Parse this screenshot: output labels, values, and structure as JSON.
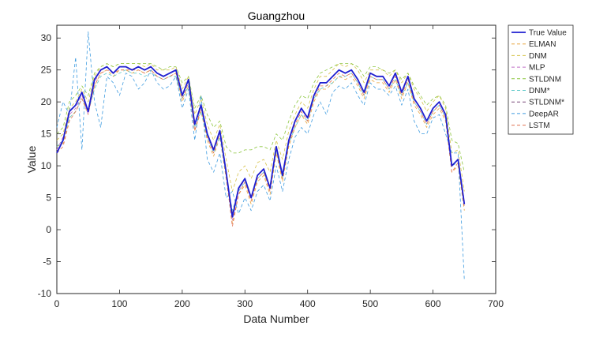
{
  "chart_data": {
    "type": "line",
    "title": "Guangzhou",
    "xlabel": "Data Number",
    "ylabel": "Value",
    "xlim": [
      0,
      700
    ],
    "ylim": [
      -10,
      32
    ],
    "xticks": [
      0,
      100,
      200,
      300,
      400,
      500,
      600,
      700
    ],
    "yticks": [
      -10,
      -5,
      0,
      5,
      10,
      15,
      20,
      25,
      30
    ],
    "grid": false,
    "legend_position": "outside-right-top",
    "x": [
      0,
      10,
      20,
      30,
      40,
      50,
      60,
      70,
      80,
      90,
      100,
      110,
      120,
      130,
      140,
      150,
      160,
      170,
      180,
      190,
      200,
      210,
      220,
      230,
      240,
      250,
      260,
      270,
      280,
      290,
      300,
      310,
      320,
      330,
      340,
      350,
      360,
      370,
      380,
      390,
      400,
      410,
      420,
      430,
      440,
      450,
      460,
      470,
      480,
      490,
      500,
      510,
      520,
      530,
      540,
      550,
      560,
      570,
      580,
      590,
      600,
      610,
      620,
      630,
      640,
      650
    ],
    "series": [
      {
        "name": "True Value",
        "color": "#1f1fd0",
        "width": 1.8,
        "dash": "",
        "values": [
          12,
          14,
          18.5,
          19.5,
          21.5,
          18.5,
          23.5,
          25,
          25.5,
          24.5,
          25.5,
          25.5,
          25,
          25.5,
          25,
          25.5,
          24.5,
          24,
          24.5,
          25,
          21,
          23.5,
          16.5,
          19.5,
          15,
          12.5,
          15.5,
          9,
          2,
          6.5,
          8,
          5,
          8.5,
          9.5,
          6.5,
          13,
          8.5,
          14,
          17,
          19,
          17.5,
          21,
          23,
          23,
          24,
          25,
          24.5,
          25,
          23.5,
          21.5,
          24.5,
          24,
          24,
          22.5,
          24.5,
          21.5,
          24,
          20.5,
          19,
          17,
          19,
          20,
          18,
          10,
          11,
          4
        ]
      },
      {
        "name": "ELMAN",
        "color": "#e8a33a",
        "width": 0.8,
        "dash": "4 3",
        "values": [
          13,
          13.5,
          17.5,
          18.5,
          20.5,
          18,
          22.5,
          24.5,
          25,
          24,
          25,
          25,
          24.5,
          25,
          24.5,
          25,
          24,
          23.5,
          24,
          24.5,
          20,
          22.5,
          15.5,
          18.5,
          14,
          11.5,
          14.5,
          8,
          1,
          5.5,
          7,
          4,
          7.5,
          8.5,
          5.5,
          12,
          7.5,
          13,
          16,
          18,
          16.5,
          20,
          22,
          22,
          23,
          24,
          23.5,
          24,
          22.5,
          20.5,
          23.5,
          23,
          23,
          21.5,
          23.5,
          20.5,
          23,
          19.5,
          18,
          16,
          18,
          19,
          17,
          9,
          10,
          3
        ]
      },
      {
        "name": "DNM",
        "color": "#d6c24a",
        "width": 0.8,
        "dash": "4 3",
        "values": [
          14,
          15,
          19,
          20,
          22,
          20,
          24,
          25.5,
          26,
          25.5,
          26,
          26,
          26,
          26,
          25.5,
          26,
          25,
          25,
          25,
          25.5,
          22,
          24,
          18,
          20.5,
          16.5,
          14,
          16.5,
          11,
          6,
          9,
          10,
          8,
          10.5,
          11,
          9,
          14,
          11,
          15.5,
          18,
          20,
          19,
          22,
          24,
          24,
          25,
          26,
          25.5,
          26,
          25,
          23,
          25,
          25,
          25,
          24,
          25,
          23,
          24.5,
          22,
          20.5,
          18.5,
          20,
          21,
          19,
          12,
          12.5,
          6
        ]
      },
      {
        "name": "MLP",
        "color": "#c070c8",
        "width": 0.8,
        "dash": "4 3",
        "values": [
          12.5,
          14.5,
          18,
          19,
          21,
          18,
          23,
          25,
          25.5,
          24.5,
          25.5,
          25.5,
          25,
          25.5,
          25,
          25.5,
          24.5,
          24,
          24.5,
          25,
          21,
          23.5,
          16.5,
          19.5,
          15,
          12.5,
          15.5,
          9,
          1.5,
          6,
          8,
          5,
          8.5,
          9.5,
          6.5,
          13,
          8.5,
          14,
          17,
          19,
          17.5,
          21,
          23,
          23,
          24,
          25,
          24.5,
          25,
          23.5,
          21.5,
          24.5,
          24,
          24,
          22.5,
          24.5,
          21.5,
          24,
          20.5,
          19,
          17,
          19,
          20,
          18,
          10,
          11,
          4.5
        ]
      },
      {
        "name": "STLDNM",
        "color": "#8cc63e",
        "width": 0.8,
        "dash": "4 3",
        "values": [
          15,
          16,
          20,
          21,
          22.5,
          21,
          24.5,
          25.5,
          26,
          25.5,
          26,
          26,
          26,
          26,
          26,
          26,
          25.5,
          25,
          25.5,
          25.5,
          23,
          24,
          19,
          21,
          18,
          16,
          17,
          13,
          12,
          12,
          12.5,
          12.5,
          13,
          13,
          12.5,
          15,
          14,
          17,
          19.5,
          21,
          20.5,
          23,
          24.5,
          25,
          25.5,
          26,
          26,
          26,
          25.5,
          24,
          25.5,
          25.5,
          25,
          24.5,
          25,
          23.5,
          24.5,
          22.5,
          21,
          19.5,
          20.5,
          21,
          19.5,
          14,
          13.5,
          9
        ]
      },
      {
        "name": "DNM*",
        "color": "#5bc8c8",
        "width": 0.8,
        "dash": "4 3",
        "values": [
          13,
          14,
          17.5,
          18.5,
          20.5,
          18.5,
          22,
          24,
          24.5,
          24,
          24.5,
          25,
          24.5,
          24.5,
          24,
          24.5,
          24,
          23.5,
          24,
          24,
          20.5,
          22.5,
          16,
          18.5,
          14.5,
          12,
          14.5,
          8.5,
          3,
          6,
          7.5,
          5,
          8,
          9,
          6.5,
          12.5,
          8,
          13.5,
          16,
          18,
          17,
          20.5,
          22,
          22.5,
          23,
          24,
          24,
          24.5,
          23,
          21,
          24,
          23.5,
          23.5,
          22,
          23.5,
          21,
          23,
          20,
          18.5,
          16.5,
          18.5,
          19.5,
          17.5,
          10,
          10.5,
          4
        ]
      },
      {
        "name": "STLDNM*",
        "color": "#7a4a7a",
        "width": 0.8,
        "dash": "4 3",
        "values": [
          12,
          14,
          18.5,
          19.5,
          21.5,
          18.5,
          23.5,
          25,
          25.5,
          24.5,
          25.5,
          25.5,
          25,
          25.5,
          25,
          25.5,
          24.5,
          24,
          24.5,
          25,
          21,
          23.5,
          16.5,
          19.5,
          15,
          12.5,
          15.5,
          9,
          2.5,
          6.5,
          8,
          5,
          8.5,
          9.5,
          6.5,
          13,
          8.5,
          14,
          17,
          19,
          17.5,
          21,
          23,
          23,
          24,
          25,
          24.5,
          25,
          23.5,
          21.5,
          24.5,
          24,
          24,
          22.5,
          24.5,
          21.5,
          24,
          20.5,
          19,
          17,
          19,
          20,
          18,
          10,
          11,
          4
        ]
      },
      {
        "name": "DeepAR",
        "color": "#3d9be0",
        "width": 0.8,
        "dash": "4 3",
        "values": [
          16,
          20,
          18,
          27,
          12.5,
          31,
          20,
          16,
          24,
          23,
          21,
          24.5,
          24,
          22,
          23,
          25,
          23,
          22,
          22.5,
          24,
          19,
          22,
          14,
          21,
          11,
          9,
          12,
          5,
          6,
          2.5,
          5,
          3,
          6,
          7,
          4.5,
          10,
          6,
          11,
          14.5,
          16,
          15,
          18,
          20,
          18,
          21.5,
          22.5,
          22,
          23,
          21,
          19.5,
          23,
          22,
          22,
          21,
          22.5,
          19.5,
          22,
          17,
          15,
          15,
          17.5,
          18,
          15,
          12,
          12,
          -8
        ]
      },
      {
        "name": "LSTM",
        "color": "#e07050",
        "width": 0.8,
        "dash": "4 3",
        "values": [
          12,
          13,
          17,
          18.5,
          20.5,
          18.5,
          22.5,
          24.5,
          25,
          24.5,
          25,
          25,
          25,
          25,
          24.5,
          25,
          24,
          23.5,
          24,
          24.5,
          20.5,
          23,
          15.5,
          19,
          14.5,
          12,
          15,
          8.5,
          0.5,
          5.5,
          7.5,
          4.5,
          8,
          9,
          6,
          12.5,
          8,
          13.5,
          16.5,
          18.5,
          17,
          20.5,
          22.5,
          22.5,
          23.5,
          24.5,
          24,
          24.5,
          23,
          21,
          24,
          23.5,
          23.5,
          22,
          24,
          21,
          23.5,
          20,
          18.5,
          16.5,
          18.5,
          19.5,
          17.5,
          9,
          10.5,
          3.5
        ]
      }
    ]
  }
}
